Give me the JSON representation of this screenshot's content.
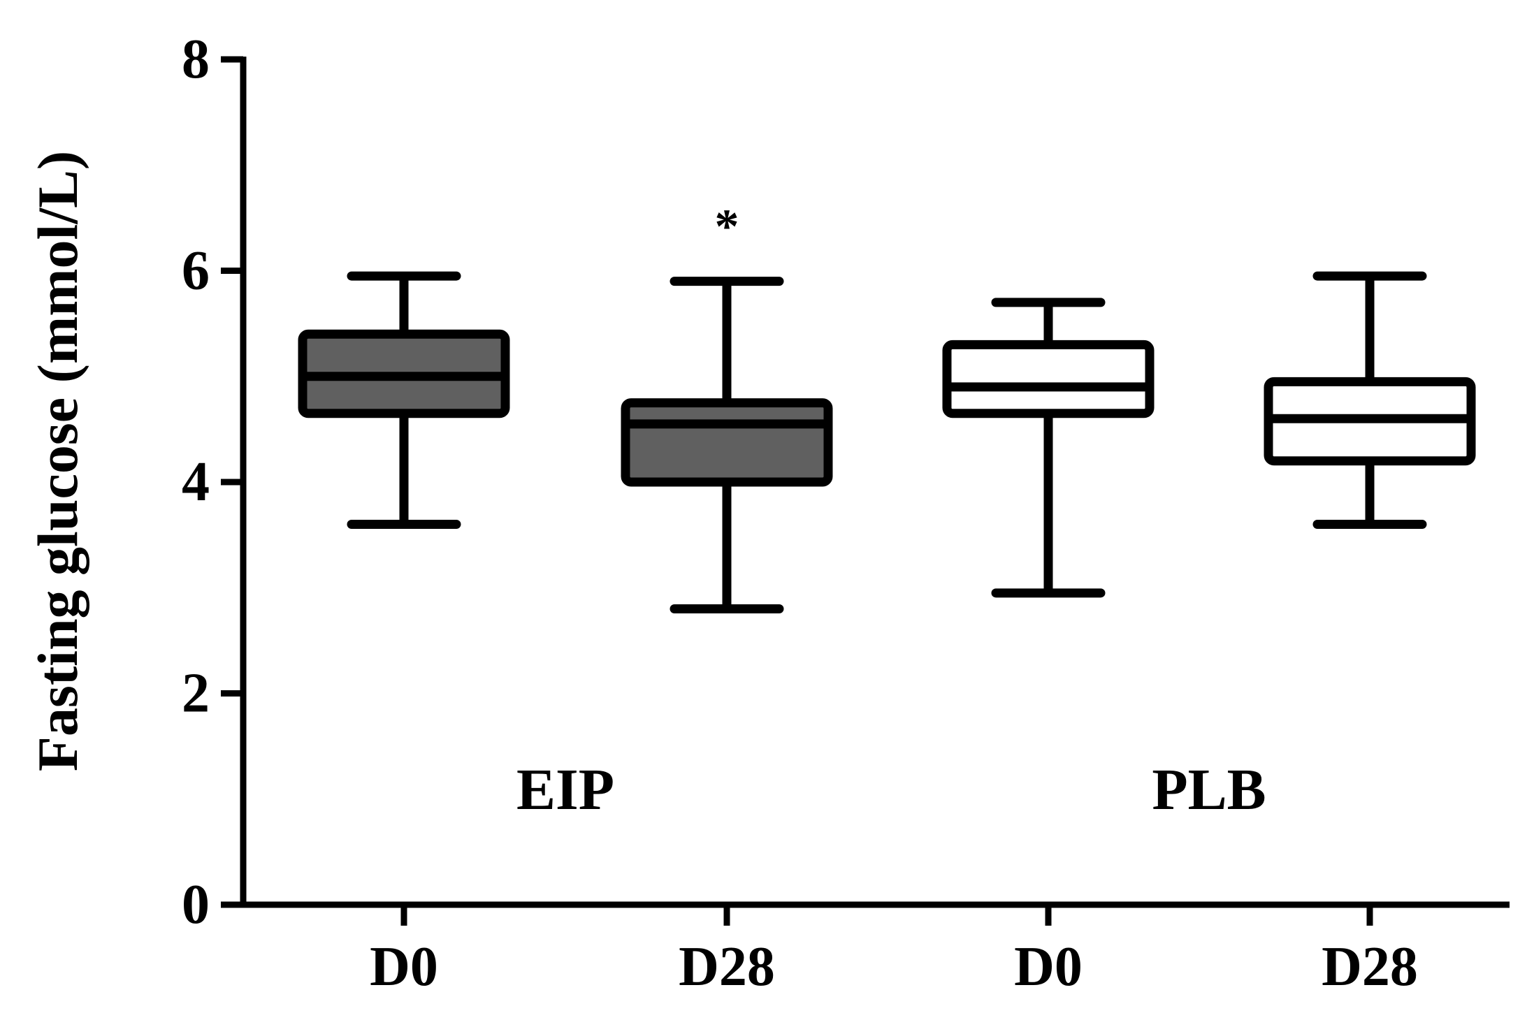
{
  "chart_data": {
    "type": "box",
    "ylabel": "Fasting glucose (mmol/L)",
    "xlabel": "",
    "ylim": [
      0,
      8
    ],
    "yticks": [
      0,
      2,
      4,
      6,
      8
    ],
    "grid": false,
    "categories": [
      "D0",
      "D28",
      "D0",
      "D28"
    ],
    "groups": [
      {
        "label": "EIP",
        "categories": [
          0,
          1
        ]
      },
      {
        "label": "PLB",
        "categories": [
          2,
          3
        ]
      }
    ],
    "series": [
      {
        "category": "D0",
        "group": "EIP",
        "fill": "#606060",
        "min": 3.6,
        "q1": 4.65,
        "median": 5.0,
        "q3": 5.4,
        "max": 5.95
      },
      {
        "category": "D28",
        "group": "EIP",
        "fill": "#606060",
        "min": 2.8,
        "q1": 4.0,
        "median": 4.55,
        "q3": 4.75,
        "max": 5.9,
        "annotation": "*"
      },
      {
        "category": "D0",
        "group": "PLB",
        "fill": "#ffffff",
        "min": 2.95,
        "q1": 4.65,
        "median": 4.9,
        "q3": 5.3,
        "max": 5.7
      },
      {
        "category": "D28",
        "group": "PLB",
        "fill": "#ffffff",
        "min": 3.6,
        "q1": 4.2,
        "median": 4.6,
        "q3": 4.95,
        "max": 5.95
      }
    ]
  }
}
